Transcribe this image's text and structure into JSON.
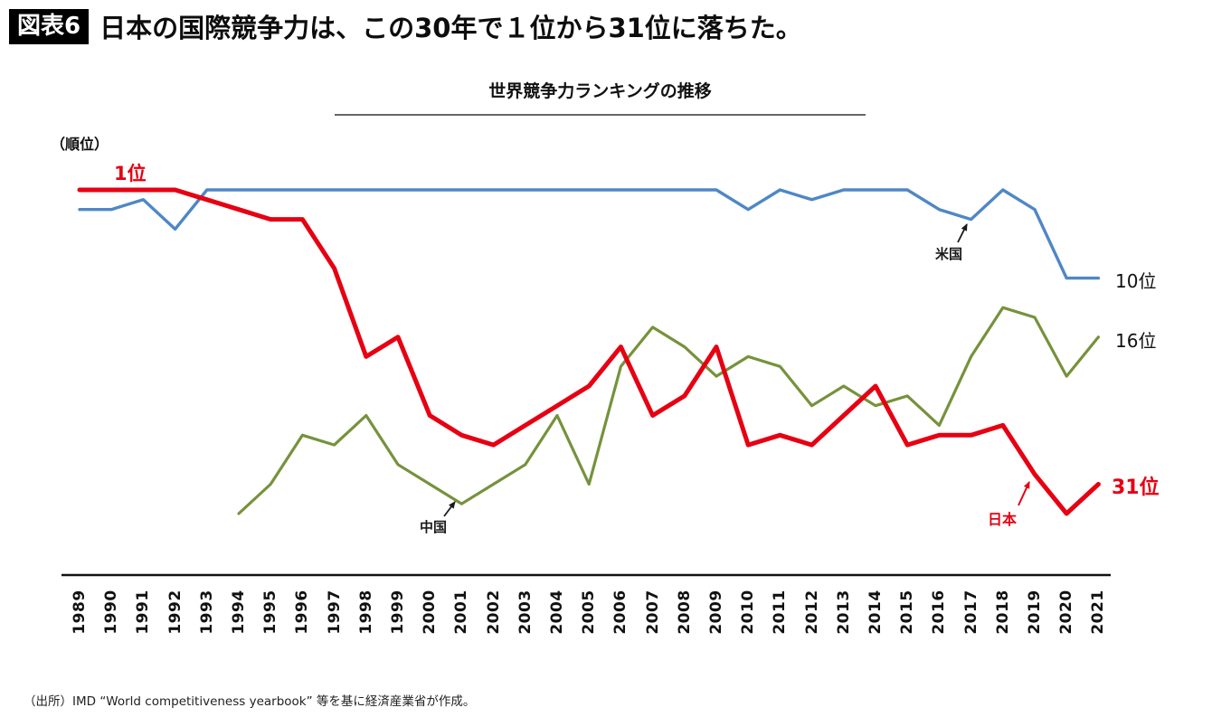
{
  "header": {
    "badge": "図表6",
    "title": "日本の国際競争力は、この30年で１位から31位に落ちた。"
  },
  "chart": {
    "title": "世界競争力ランキングの推移",
    "y_axis_label": "（順位）",
    "start_label": "1位",
    "end_labels": {
      "usa": "10位",
      "china": "16位",
      "japan": "31位"
    },
    "annotations": {
      "usa": "米国",
      "china": "中国",
      "japan": "日本"
    }
  },
  "source": "（出所）IMD “World competitiveness yearbook” 等を基に経済産業省が作成。",
  "chart_data": {
    "type": "line",
    "title": "世界競争力ランキングの推移",
    "xlabel": "",
    "ylabel": "（順位） rank, 1 = best, axis inverted (1 at top)",
    "ylim": [
      1,
      35
    ],
    "grid": false,
    "legend_position": "inline-annotations",
    "x": [
      1989,
      1990,
      1991,
      1992,
      1993,
      1994,
      1995,
      1996,
      1997,
      1998,
      1999,
      2000,
      2001,
      2002,
      2003,
      2004,
      2005,
      2006,
      2007,
      2008,
      2009,
      2010,
      2011,
      2012,
      2013,
      2014,
      2015,
      2016,
      2017,
      2018,
      2019,
      2020,
      2021
    ],
    "series": [
      {
        "key": "japan",
        "name": "日本",
        "color": "#e60012",
        "values": [
          1,
          1,
          1,
          1,
          2,
          3,
          4,
          4,
          9,
          18,
          16,
          24,
          26,
          27,
          25,
          23,
          21,
          17,
          24,
          22,
          17,
          27,
          26,
          27,
          24,
          21,
          27,
          26,
          26,
          25,
          30,
          34,
          31
        ]
      },
      {
        "key": "usa",
        "name": "米国",
        "color": "#4f87c5",
        "values": [
          3,
          3,
          2,
          5,
          1,
          1,
          1,
          1,
          1,
          1,
          1,
          1,
          1,
          1,
          1,
          1,
          1,
          1,
          1,
          1,
          1,
          3,
          1,
          2,
          1,
          1,
          1,
          3,
          4,
          1,
          3,
          10,
          10
        ]
      },
      {
        "key": "china",
        "name": "中国",
        "color": "#76923c",
        "values": [
          null,
          null,
          null,
          null,
          null,
          34,
          31,
          26,
          27,
          24,
          29,
          31,
          33,
          31,
          29,
          24,
          31,
          19,
          15,
          17,
          20,
          18,
          19,
          23,
          21,
          23,
          22,
          25,
          18,
          13,
          14,
          20,
          16
        ]
      }
    ]
  }
}
